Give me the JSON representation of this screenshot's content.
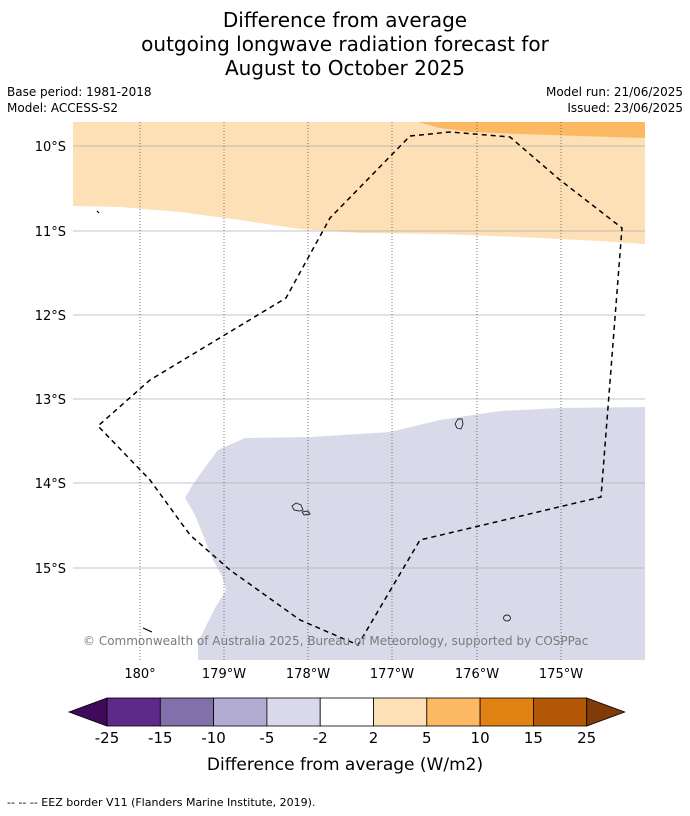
{
  "title": {
    "line1": "Difference from average",
    "line2": "outgoing longwave radiation forecast for",
    "line3": "August to October 2025"
  },
  "meta": {
    "base_period": "Base period: 1981-2018",
    "model": "Model: ACCESS-S2",
    "model_run": "Model run: 21/06/2025",
    "issued": "Issued: 23/06/2025"
  },
  "map": {
    "lon_labels": [
      "180°",
      "179°W",
      "178°W",
      "177°W",
      "176°W",
      "175°W"
    ],
    "lat_labels": [
      "10°S",
      "11°S",
      "12°S",
      "13°S",
      "14°S",
      "15°S"
    ],
    "copyright": "© Commonwealth of Australia 2025, Bureau of Meteorology, supported by COSPPac",
    "colors": {
      "pos_2_5": "#fde0b6",
      "pos_5_10": "#fdb863",
      "neg_2_5": "#d8daea"
    }
  },
  "colorbar": {
    "label": "Difference from average (W/m2)",
    "ticks": [
      "-25",
      "-15",
      "-10",
      "-5",
      "-2",
      "2",
      "5",
      "10",
      "15",
      "25"
    ],
    "colors": [
      "#3f0a5b",
      "#5e2a8a",
      "#8071ad",
      "#b2abd2",
      "#d8daea",
      "#ffffff",
      "#fde0b6",
      "#fdb863",
      "#e08214",
      "#b35806",
      "#7f3b08"
    ]
  },
  "footnote": "--  --  -- EEZ border V11 (Flanders Marine Institute, 2019)."
}
